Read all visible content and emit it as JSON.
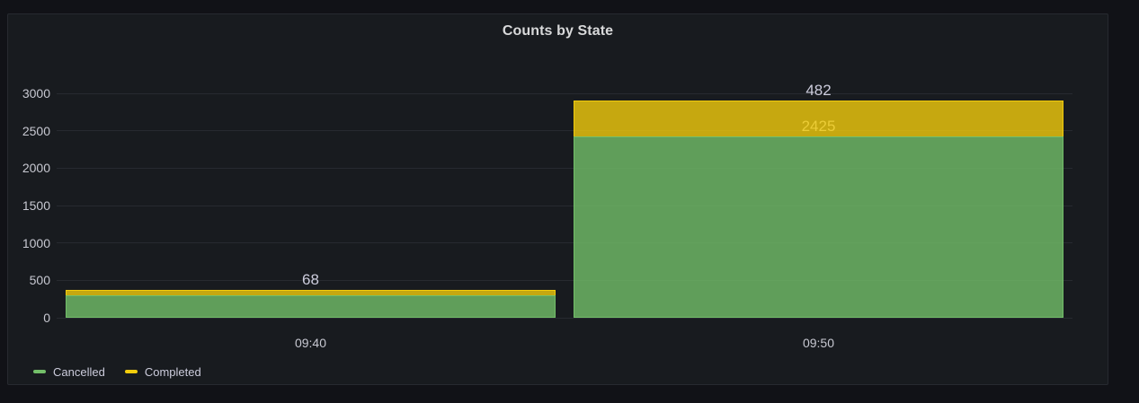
{
  "panel": {
    "title": "Counts by State"
  },
  "colors": {
    "page_background": "#111217",
    "panel_background": "#181b1f",
    "panel_border": "rgba(204,204,220,0.09)",
    "grid": "rgba(204,204,220,0.09)",
    "axis_text": "#c7c8d1",
    "title_text": "#d8d9da",
    "value_label_text": "#ccccdc",
    "series_green": "#73BF69",
    "series_yellow": "#F2CC0C"
  },
  "chart_data": {
    "type": "bar",
    "stacked": true,
    "orientation": "vertical",
    "title": "Counts by State",
    "categories": [
      "09:40",
      "09:50"
    ],
    "series": [
      {
        "name": "Cancelled",
        "color": "#73BF69",
        "values": [
          305,
          2425
        ],
        "value_labels": [
          "",
          "2425"
        ]
      },
      {
        "name": "Completed",
        "color": "#F2CC0C",
        "values": [
          68,
          482
        ],
        "value_labels": [
          "68",
          "482"
        ]
      }
    ],
    "xlabel": "",
    "ylabel": "",
    "ylim": [
      0,
      3000
    ],
    "yticks": [
      0,
      500,
      1000,
      1500,
      2000,
      2500,
      3000
    ],
    "grid": true,
    "fill_opacity": 0.8,
    "legend_position": "bottom-left"
  }
}
